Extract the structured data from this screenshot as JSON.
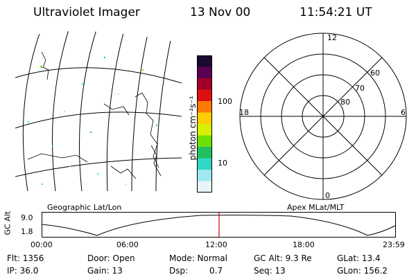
{
  "header": {
    "instrument": "Ultraviolet Imager",
    "date": "13 Nov 00",
    "time": "11:54:21 UT"
  },
  "colorbar": {
    "unit_label": "photon cm⁻²s⁻¹",
    "ticks": [
      "100",
      "10"
    ],
    "colors": [
      "#1a0a2e",
      "#5a0050",
      "#a0002a",
      "#dd1010",
      "#ff7a00",
      "#ffcc00",
      "#d8f000",
      "#6ee000",
      "#22c060",
      "#30d8c8",
      "#a0e8f0",
      "#e8f4f8"
    ]
  },
  "geo_map": {
    "label": "Geographic Lat/Lon"
  },
  "polar": {
    "label": "Apex MLat/MLT",
    "mlt_labels": {
      "top": "12",
      "left": "18",
      "right": "6",
      "bottom": "0"
    },
    "lat_labels": [
      "60",
      "70",
      "80"
    ]
  },
  "orbit_plot": {
    "ylabel": "GC Alt",
    "yticks": [
      "9.0",
      "1.8"
    ],
    "xticks": [
      "00:00",
      "06:00",
      "12:00",
      "18:00",
      "23:59"
    ],
    "marker_color": "#cc0000"
  },
  "status": {
    "flt": "Flt: 1356",
    "ip": "IP: 36.0",
    "door": "Door: Open",
    "gain": "Gain: 13",
    "mode": "Mode: Normal",
    "dsp_label": "Dsp:",
    "dsp_value": "0.7",
    "gcalt": "GC Alt: 9.3 Re",
    "seq": "Seq: 13",
    "glat": "GLat: 13.4",
    "glon": "GLon: 156.2"
  }
}
